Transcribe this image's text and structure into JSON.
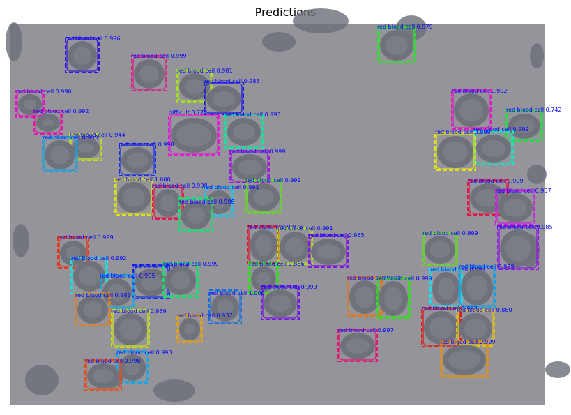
{
  "title": "Predictions",
  "colors": {
    "label_text": "#0000ff",
    "background": "#94949a",
    "cell": "#70737b"
  },
  "detections": [
    {
      "label": "red blood cell 0.996",
      "color": "#3318d8"
    },
    {
      "label": "red blood cell 0.999",
      "color": "#e0188a"
    },
    {
      "label": "red blood cell 0.981",
      "color": "#a4e020"
    },
    {
      "label": "red blood cell 0.983",
      "color": "#1818e0"
    },
    {
      "label": "red blood cell 0.979",
      "color": "#30e030"
    },
    {
      "label": "red blood cell 0.990",
      "color": "#e018c0"
    },
    {
      "label": "red blood cell 0.992",
      "color": "#e018a8"
    },
    {
      "label": "difficult 0.774",
      "color": "#e018d8"
    },
    {
      "label": "red blood cell 0.993",
      "color": "#18e0a0"
    },
    {
      "label": "red blood cell 0.992",
      "color": "#e018c8"
    },
    {
      "label": "red blood cell 0.742",
      "color": "#20e040"
    },
    {
      "label": "red blood cell 0.999",
      "color": "#18e0c0"
    },
    {
      "label": "red blood cell 0.944",
      "color": "#c0e018"
    },
    {
      "label": "red blood cell 0.993",
      "color": "#18a0e0"
    },
    {
      "label": "red blood cell 0.999",
      "color": "#e0e018"
    },
    {
      "label": "red blood cell 0.998",
      "color": "#1830e0"
    },
    {
      "label": "red blood cell 0.999",
      "color": "#a018e0"
    },
    {
      "label": "red blood cell 1.000",
      "color": "#d8e018"
    },
    {
      "label": "red blood cell 0.999",
      "color": "#60e018"
    },
    {
      "label": "red blood cell 0.998",
      "color": "#e01848"
    },
    {
      "label": "red blood cell 0.991",
      "color": "#18c8e0"
    },
    {
      "label": "red blood cell 0.998",
      "color": "#18e070"
    },
    {
      "label": "red blood cell 0.999",
      "color": "#e01848"
    },
    {
      "label": "red blood cell 0.957",
      "color": "#d018e0"
    },
    {
      "label": "red blood cell 0.985",
      "color": "#9018e0"
    },
    {
      "label": "red blood cell 0.999",
      "color": "#e03818"
    },
    {
      "label": "red blood cell 0.976",
      "color": "#e01830"
    },
    {
      "label": "red blood cell 0.991",
      "color": "#b0e018"
    },
    {
      "label": "red blood cell 0.965",
      "color": "#8018e0"
    },
    {
      "label": "red blood cell 0.999",
      "color": "#60e018"
    },
    {
      "label": "red blood cell 0.992",
      "color": "#18e0e0"
    },
    {
      "label": "red blood cell 0.998",
      "color": "#1830e0"
    },
    {
      "label": "red blood cell 0.999",
      "color": "#18e070"
    },
    {
      "label": "red blood cell 0.995",
      "color": "#18a8e0"
    },
    {
      "label": "red blood cell 0.856",
      "color": "#30e018"
    },
    {
      "label": "red blood cell 0.999",
      "color": "#7018e0"
    },
    {
      "label": "red blood cell 0.997",
      "color": "#18e0f0"
    },
    {
      "label": "red blood cell 0.999",
      "color": "#18a0e0"
    },
    {
      "label": "red blood cell 0.998",
      "color": "#e07818"
    },
    {
      "label": "red blood cell 0.999",
      "color": "#30e018"
    },
    {
      "label": "red blood cell 0.982",
      "color": "#e08018"
    },
    {
      "label": "red blood cell 1.000",
      "color": "#1870e0"
    },
    {
      "label": "red blood cell 0.959",
      "color": "#c8e018"
    },
    {
      "label": "red blood cell 0.937",
      "color": "#e0a018"
    },
    {
      "label": "red blood cell 0.993",
      "color": "#e01818"
    },
    {
      "label": "red blood cell 0.880",
      "color": "#e0c018"
    },
    {
      "label": "red blood cell 0.997",
      "color": "#e01870"
    },
    {
      "label": "red blood cell 0.999",
      "color": "#e09018"
    },
    {
      "label": "red blood cell 0.990",
      "color": "#18a8e0"
    },
    {
      "label": "red blood cell 0.998",
      "color": "#e05018"
    }
  ]
}
